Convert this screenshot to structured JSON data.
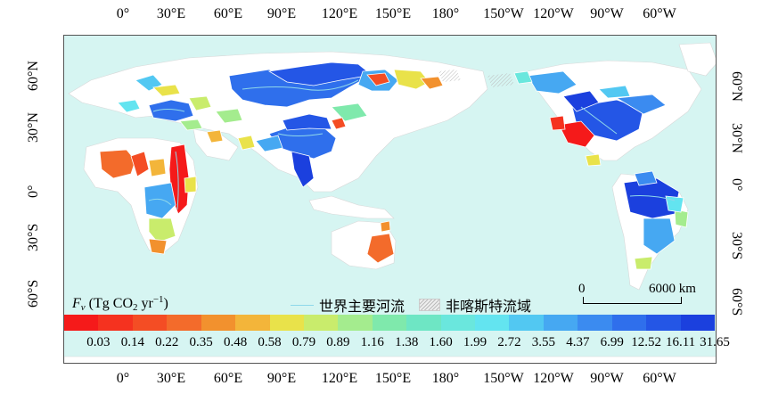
{
  "map": {
    "lon_ticks": [
      "0°",
      "30°E",
      "60°E",
      "90°E",
      "120°E",
      "150°E",
      "180°",
      "150°W",
      "120°W",
      "90°W",
      "60°W"
    ],
    "lat_ticks": [
      "60°N",
      "30°N",
      "0°",
      "30°S",
      "60°S"
    ],
    "legend_title": {
      "symbol": "F",
      "sub": "v",
      "unit_prefix": " (Tg CO",
      "unit_sub": "2",
      "unit_mid": " yr",
      "unit_sup": "−1",
      "unit_suffix": ")"
    },
    "river_label": "世界主要河流",
    "nonkarst_label": "非喀斯特流域",
    "scale": {
      "zero": "0",
      "distance": "6000 km"
    },
    "colors": {
      "ocean": "#d6f5f2",
      "river": "#8fd8ea",
      "scale": [
        "#f51a1a",
        "#f5321f",
        "#f44d24",
        "#f36b2b",
        "#f2912e",
        "#f3b53a",
        "#e9e24a",
        "#c9ec6c",
        "#a4ec8e",
        "#7fe9ac",
        "#6ee6c4",
        "#6ae7dd",
        "#63e4f0",
        "#52c8f2",
        "#46a8f2",
        "#3b8bf0",
        "#2f6fec",
        "#2456e6",
        "#1b40de"
      ]
    },
    "colorbar_labels": [
      "0.03",
      "0.14",
      "0.22",
      "0.35",
      "0.48",
      "0.58",
      "0.79",
      "0.89",
      "1.16",
      "1.38",
      "1.60",
      "1.99",
      "2.72",
      "3.55",
      "4.37",
      "6.99",
      "12.52",
      "16.11",
      "31.65"
    ]
  }
}
